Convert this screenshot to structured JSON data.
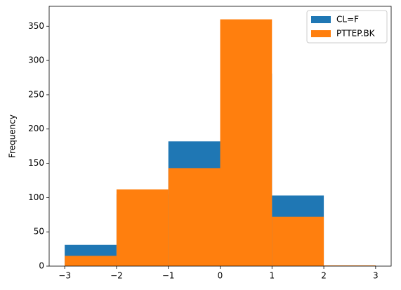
{
  "chart_data": {
    "type": "histogram",
    "y_label": "Frequency",
    "bins": [
      -3,
      -2,
      -1,
      0,
      1,
      2,
      3
    ],
    "series": [
      {
        "name": "CL=F",
        "color": "#1f77b4",
        "values": [
          31,
          105,
          182,
          281,
          103,
          1
        ]
      },
      {
        "name": "PTTEP.BK",
        "color": "#ff7f0e",
        "values": [
          15,
          112,
          143,
          360,
          72,
          1
        ]
      }
    ],
    "xlim": [
      -3.3,
      3.3
    ],
    "ylim": [
      0,
      379
    ],
    "xticks": [
      {
        "value": -3,
        "label": "−3"
      },
      {
        "value": -2,
        "label": "−2"
      },
      {
        "value": -1,
        "label": "−1"
      },
      0,
      1,
      2,
      3
    ],
    "yticks": [
      0,
      50,
      100,
      150,
      200,
      250,
      300,
      350
    ],
    "legend": "upper right"
  }
}
